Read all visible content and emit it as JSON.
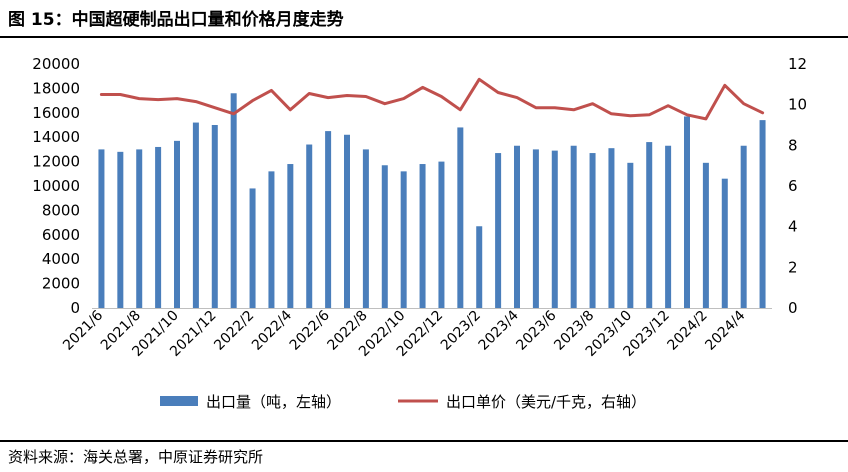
{
  "title": "图 15：中国超硬制品出口量和价格月度走势",
  "source": "资料来源：海关总署，中原证券研究所",
  "chart_data": {
    "type": "bar+line",
    "categories": [
      "2021/6",
      "2021/7",
      "2021/8",
      "2021/9",
      "2021/10",
      "2021/11",
      "2021/12",
      "2022/1",
      "2022/2",
      "2022/3",
      "2022/4",
      "2022/5",
      "2022/6",
      "2022/7",
      "2022/8",
      "2022/9",
      "2022/10",
      "2022/11",
      "2022/12",
      "2023/1",
      "2023/2",
      "2023/3",
      "2023/4",
      "2023/5",
      "2023/6",
      "2023/7",
      "2023/8",
      "2023/9",
      "2023/10",
      "2023/11",
      "2023/12",
      "2024/1",
      "2024/2",
      "2024/3",
      "2024/4",
      "2024/5"
    ],
    "x_tick_labels": [
      "2021/6",
      "2021/8",
      "2021/10",
      "2021/12",
      "2022/2",
      "2022/4",
      "2022/6",
      "2022/8",
      "2022/10",
      "2022/12",
      "2023/2",
      "2023/4",
      "2023/6",
      "2023/8",
      "2023/10",
      "2023/12",
      "2024/2",
      "2024/4"
    ],
    "series": [
      {
        "name": "出口量（吨，左轴）",
        "type": "bar",
        "axis": "left",
        "color": "#4a7ebb",
        "values": [
          13000,
          12800,
          13000,
          13200,
          13700,
          15200,
          15000,
          17600,
          9800,
          11200,
          11800,
          13400,
          14500,
          14200,
          13000,
          11700,
          11200,
          11800,
          12000,
          14800,
          6700,
          12700,
          13300,
          13000,
          12900,
          13300,
          12700,
          13100,
          11900,
          13600,
          13300,
          15700,
          11900,
          10600,
          13300,
          15400
        ]
      },
      {
        "name": "出口单价（美元/千克，右轴）",
        "type": "line",
        "axis": "right",
        "color": "#c0504d",
        "values": [
          10.5,
          10.5,
          10.3,
          10.25,
          10.3,
          10.15,
          9.85,
          9.55,
          10.2,
          10.7,
          9.75,
          10.55,
          10.35,
          10.45,
          10.4,
          10.05,
          10.3,
          10.85,
          10.4,
          9.75,
          11.25,
          10.6,
          10.35,
          9.85,
          9.85,
          9.75,
          10.05,
          9.55,
          9.45,
          9.5,
          9.95,
          9.5,
          9.3,
          10.95,
          10.05,
          9.6
        ]
      }
    ],
    "y_left": {
      "min": 0,
      "max": 20000,
      "ticks": [
        0,
        2000,
        4000,
        6000,
        8000,
        10000,
        12000,
        14000,
        16000,
        18000,
        20000
      ]
    },
    "y_right": {
      "min": 0,
      "max": 12,
      "ticks": [
        0,
        2,
        4,
        6,
        8,
        10,
        12
      ]
    },
    "grid": false,
    "legend_position": "bottom"
  }
}
